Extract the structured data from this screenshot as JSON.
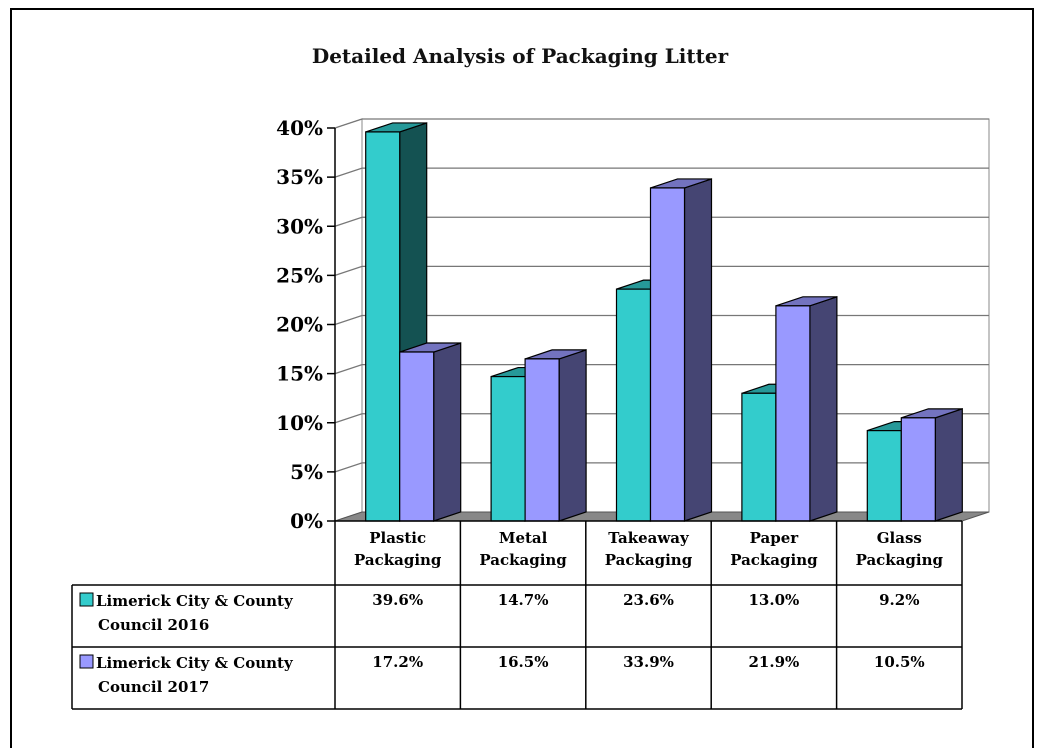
{
  "chart_data": {
    "type": "bar",
    "title": "Detailed Analysis of Packaging Litter",
    "xlabel": "",
    "ylabel": "",
    "ylim": [
      0,
      40
    ],
    "y_ticks": [
      "0%",
      "5%",
      "10%",
      "15%",
      "20%",
      "25%",
      "30%",
      "35%",
      "40%"
    ],
    "categories": [
      [
        "Plastic",
        "Packaging"
      ],
      [
        "Metal",
        "Packaging"
      ],
      [
        "Takeaway",
        "Packaging"
      ],
      [
        "Paper",
        "Packaging"
      ],
      [
        "Glass",
        "Packaging"
      ]
    ],
    "series": [
      {
        "name_lines": [
          "Limerick City & County",
          "Council 2016"
        ],
        "color": "#33cccc",
        "values": [
          39.6,
          14.7,
          23.6,
          13.0,
          9.2
        ],
        "labels": [
          "39.6%",
          "14.7%",
          "23.6%",
          "13.0%",
          "9.2%"
        ]
      },
      {
        "name_lines": [
          "Limerick City & County",
          "Council 2017"
        ],
        "color": "#9999ff",
        "values": [
          17.2,
          16.5,
          33.9,
          21.9,
          10.5
        ],
        "labels": [
          "17.2%",
          "16.5%",
          "33.9%",
          "21.9%",
          "10.5%"
        ]
      }
    ],
    "grid": true,
    "style": "3d-clustered-column",
    "data_table": true
  }
}
